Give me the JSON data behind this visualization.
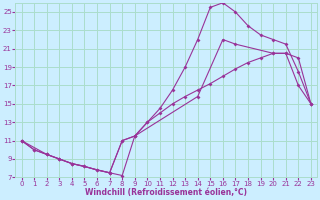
{
  "xlabel": "Windchill (Refroidissement éolien,°C)",
  "background_color": "#cceeff",
  "line_color": "#993399",
  "grid_color": "#aaddcc",
  "xlim": [
    -0.5,
    23.5
  ],
  "ylim": [
    7,
    26
  ],
  "xticks": [
    0,
    1,
    2,
    3,
    4,
    5,
    6,
    7,
    8,
    9,
    10,
    11,
    12,
    13,
    14,
    15,
    16,
    17,
    18,
    19,
    20,
    21,
    22,
    23
  ],
  "yticks": [
    7,
    9,
    11,
    13,
    15,
    17,
    19,
    21,
    23,
    25
  ],
  "line1_x": [
    0,
    1,
    2,
    3,
    4,
    5,
    6,
    7,
    8,
    9,
    10,
    11,
    12,
    13,
    14,
    15,
    16,
    17,
    18,
    19,
    20,
    21,
    22,
    23
  ],
  "line1_y": [
    11,
    10,
    9.5,
    9.0,
    8.5,
    8.2,
    7.8,
    7.5,
    7.2,
    11.5,
    13.0,
    14.0,
    15.0,
    15.8,
    16.5,
    17.2,
    18.0,
    18.8,
    19.5,
    20.0,
    20.5,
    20.5,
    20.0,
    15.0
  ],
  "line2_x": [
    0,
    1,
    2,
    3,
    4,
    5,
    6,
    7,
    8,
    9,
    10,
    11,
    12,
    13,
    14,
    15,
    16,
    17,
    18,
    19,
    20,
    21,
    22,
    23
  ],
  "line2_y": [
    11,
    10,
    9.5,
    9.0,
    8.5,
    8.2,
    7.8,
    7.5,
    11.0,
    11.5,
    13.0,
    14.5,
    16.5,
    19.0,
    22.0,
    25.5,
    26.0,
    25.0,
    23.5,
    22.5,
    22.0,
    21.5,
    18.5,
    15.0
  ],
  "line3_x": [
    0,
    2,
    3,
    4,
    7,
    8,
    9,
    14,
    16,
    17,
    20,
    21,
    22,
    23
  ],
  "line3_y": [
    11,
    9.5,
    9.0,
    8.5,
    7.5,
    11.0,
    11.5,
    15.8,
    22.0,
    21.5,
    20.5,
    20.5,
    17.0,
    15.0
  ]
}
